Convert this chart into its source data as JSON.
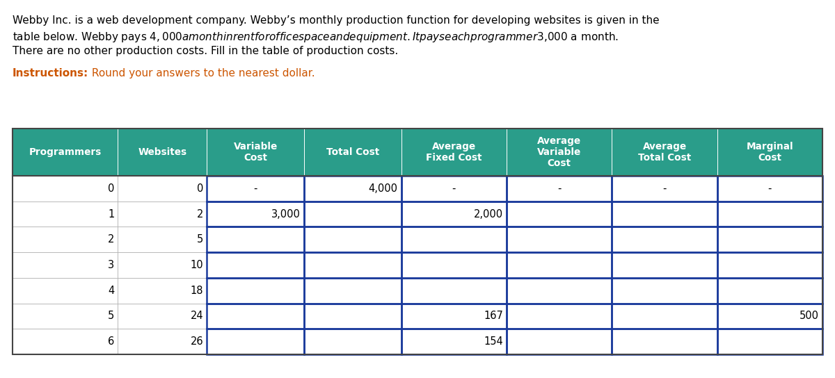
{
  "title_line1": "Webby Inc. is a web development company. Webby’s monthly production function for developing websites is given in the",
  "title_line2": "table below. Webby pays $4,000 a month in rent for office space and equipment. It pays each programmer $3,000 a month.",
  "title_line3": "There are no other production costs. Fill in the table of production costs.",
  "instructions_bold": "Instructions:",
  "instructions_rest": " Round your answers to the nearest dollar.",
  "header_bg": "#2a9d8a",
  "header_text_color": "#ffffff",
  "row_bg": "#ffffff",
  "border_color_outer": "#555555",
  "border_color_inner": "#1a3a9c",
  "instructions_color_bold": "#cc5500",
  "instructions_color_rest": "#cc5500",
  "col_headers": [
    "Programmers",
    "Websites",
    "Variable\nCost",
    "Total Cost",
    "Average\nFixed Cost",
    "Average\nVariable\nCost",
    "Average\nTotal Cost",
    "Marginal\nCost"
  ],
  "rows": [
    [
      "0",
      "0",
      "-",
      "4,000",
      "-",
      "-",
      "-",
      "-"
    ],
    [
      "1",
      "2",
      "3,000",
      "",
      "2,000",
      "",
      "",
      ""
    ],
    [
      "2",
      "5",
      "",
      "",
      "",
      "",
      "",
      ""
    ],
    [
      "3",
      "10",
      "",
      "",
      "",
      "",
      "",
      ""
    ],
    [
      "4",
      "18",
      "",
      "",
      "",
      "",
      "",
      ""
    ],
    [
      "5",
      "24",
      "",
      "",
      "167",
      "",
      "",
      "500"
    ],
    [
      "6",
      "26",
      "",
      "",
      "154",
      "",
      "",
      ""
    ]
  ],
  "col_widths_rel": [
    1.3,
    1.1,
    1.2,
    1.2,
    1.3,
    1.3,
    1.3,
    1.3
  ],
  "input_cols": [
    2,
    3,
    4,
    5,
    6,
    7
  ],
  "fig_width": 12.0,
  "fig_height": 5.44
}
